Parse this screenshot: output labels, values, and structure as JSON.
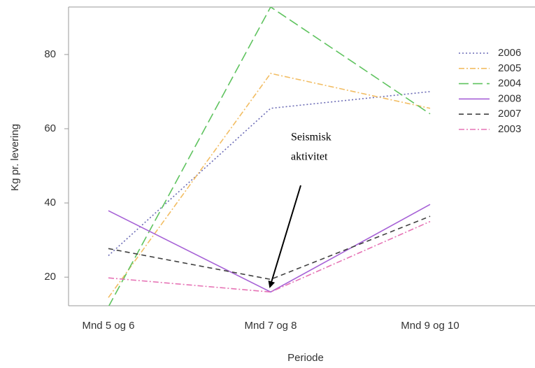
{
  "chart_data": {
    "type": "line",
    "x_label": "Periode",
    "y_label": "Kg pr. levering",
    "categories": [
      "Mnd 5 og 6",
      "Mnd 7 og 8",
      "Mnd 9 og 10"
    ],
    "series": [
      {
        "name": "2006",
        "color": "#6b6bb5",
        "linestyle": "dotted",
        "values": [
          25.8,
          65.5,
          70
        ]
      },
      {
        "name": "2005",
        "color": "#f2bd63",
        "linestyle": "dotdash",
        "values": [
          14.5,
          74.9,
          65.5
        ]
      },
      {
        "name": "2004",
        "color": "#5fc35f",
        "linestyle": "longdash",
        "values": [
          12,
          92.8,
          64
        ]
      },
      {
        "name": "2008",
        "color": "#a661d6",
        "linestyle": "solid",
        "values": [
          37.9,
          16,
          39.6
        ]
      },
      {
        "name": "2007",
        "color": "#404040",
        "linestyle": "dashed",
        "values": [
          27.7,
          19.4,
          36.4
        ]
      },
      {
        "name": "2003",
        "color": "#e673b5",
        "linestyle": "dotdash",
        "values": [
          19.8,
          16,
          35
        ]
      }
    ],
    "ylim": [
      12.3,
      92.8
    ],
    "yticks": [
      20,
      40,
      60,
      80
    ],
    "annotation": [
      "Seismisk",
      "aktivitet"
    ]
  }
}
